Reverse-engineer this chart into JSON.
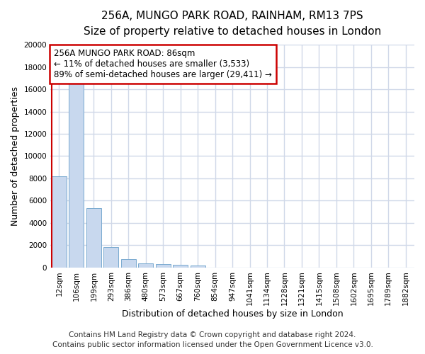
{
  "title_line1": "256A, MUNGO PARK ROAD, RAINHAM, RM13 7PS",
  "title_line2": "Size of property relative to detached houses in London",
  "xlabel": "Distribution of detached houses by size in London",
  "ylabel": "Number of detached properties",
  "categories": [
    "12sqm",
    "106sqm",
    "199sqm",
    "293sqm",
    "386sqm",
    "480sqm",
    "573sqm",
    "667sqm",
    "760sqm",
    "854sqm",
    "947sqm",
    "1041sqm",
    "1134sqm",
    "1228sqm",
    "1321sqm",
    "1415sqm",
    "1508sqm",
    "1602sqm",
    "1695sqm",
    "1789sqm",
    "1882sqm"
  ],
  "bar_values": [
    8200,
    16600,
    5300,
    1850,
    750,
    380,
    290,
    230,
    200,
    0,
    0,
    0,
    0,
    0,
    0,
    0,
    0,
    0,
    0,
    0,
    0
  ],
  "bar_color": "#c8d8ee",
  "bar_edge_color": "#7aaad0",
  "annotation_text": "256A MUNGO PARK ROAD: 86sqm\n← 11% of detached houses are smaller (3,533)\n89% of semi-detached houses are larger (29,411) →",
  "annotation_box_color": "#ffffff",
  "annotation_box_edge": "#cc0000",
  "property_line_color": "#cc0000",
  "ylim": [
    0,
    20000
  ],
  "yticks": [
    0,
    2000,
    4000,
    6000,
    8000,
    10000,
    12000,
    14000,
    16000,
    18000,
    20000
  ],
  "footer_line1": "Contains HM Land Registry data © Crown copyright and database right 2024.",
  "footer_line2": "Contains public sector information licensed under the Open Government Licence v3.0.",
  "background_color": "#ffffff",
  "plot_bg_color": "#ffffff",
  "grid_color": "#d0d8e8",
  "title_fontsize": 11,
  "subtitle_fontsize": 9.5,
  "axis_label_fontsize": 9,
  "tick_fontsize": 7.5,
  "footer_fontsize": 7.5,
  "annotation_fontsize": 8.5
}
